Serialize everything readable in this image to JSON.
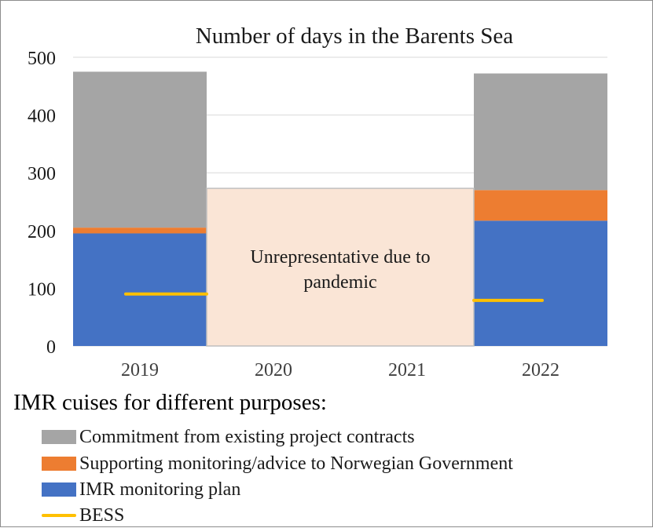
{
  "chart_data": {
    "type": "bar",
    "stacked": true,
    "title": "Number of days in the Barents Sea",
    "categories": [
      "2019",
      "2020",
      "2021",
      "2022"
    ],
    "ylim": [
      0,
      500
    ],
    "yticks": [
      0,
      100,
      200,
      300,
      400,
      500
    ],
    "grid": true,
    "series": [
      {
        "name": "IMR monitoring plan",
        "color": "#4472c4",
        "values": [
          195,
          null,
          null,
          217
        ]
      },
      {
        "name": "Supporting monitoring/advice to Norwegian Government",
        "color": "#ed7d31",
        "values": [
          10,
          null,
          null,
          53
        ]
      },
      {
        "name": "Commitment from existing project contracts",
        "color": "#a5a5a5",
        "values": [
          270,
          null,
          null,
          202
        ]
      }
    ],
    "line_series": {
      "name": "BESS",
      "color": "#ffc000",
      "values": [
        90,
        null,
        null,
        79
      ]
    },
    "annotation": {
      "text_line1": "Unrepresentative  due to",
      "text_line2": "pandemic",
      "from_category": "2020",
      "to_category": "2021",
      "value": 273,
      "fill": "#fae5d6",
      "stroke": "#bfbfbf"
    },
    "legend_title": "IMR cuises for different purposes:",
    "legend_placement": "bottom-left",
    "legend_order": [
      "Commitment from existing project contracts",
      "Supporting monitoring/advice to Norwegian Government",
      "IMR monitoring plan",
      "BESS"
    ]
  }
}
